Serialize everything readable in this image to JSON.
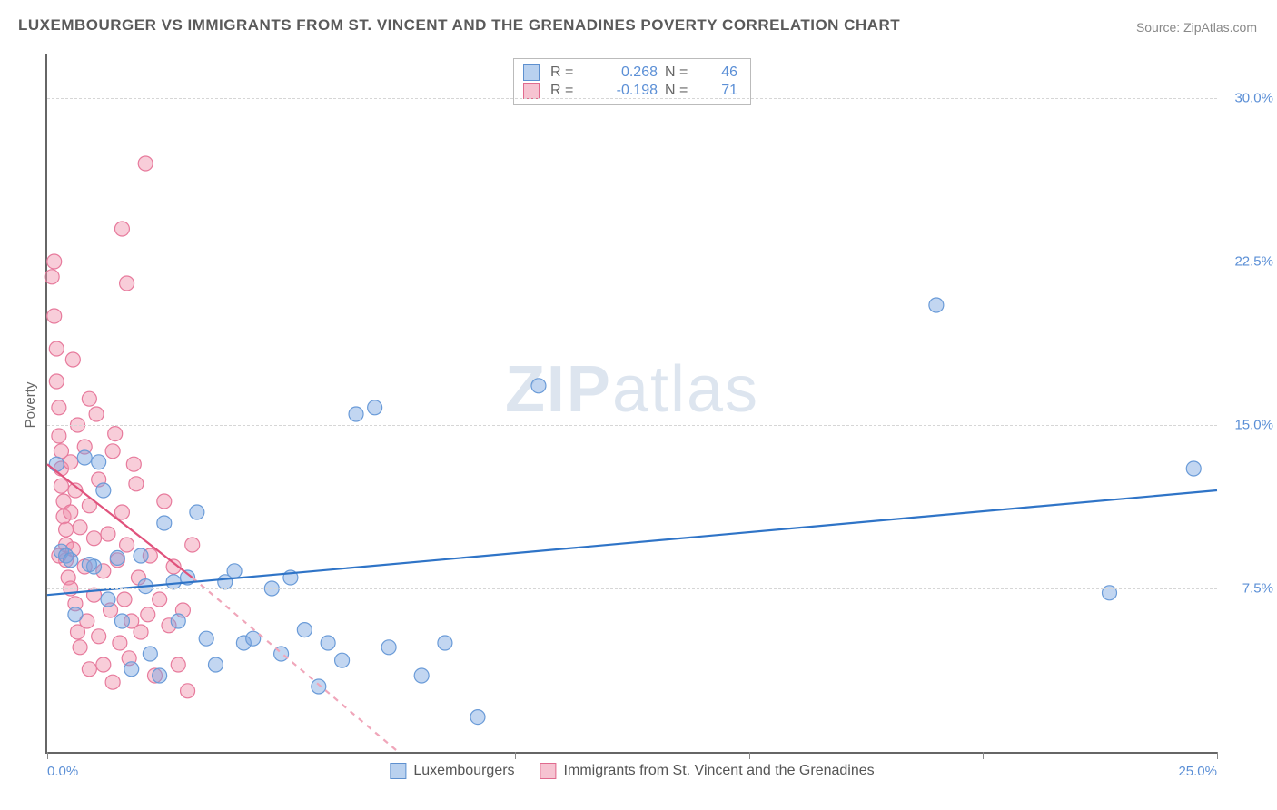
{
  "title": "LUXEMBOURGER VS IMMIGRANTS FROM ST. VINCENT AND THE GRENADINES POVERTY CORRELATION CHART",
  "source": "Source: ZipAtlas.com",
  "ylabel": "Poverty",
  "watermark": {
    "z": "ZIP",
    "rest": "atlas"
  },
  "chart": {
    "type": "scatter",
    "background_color": "#ffffff",
    "grid_color": "#d6d6d6",
    "axis_color": "#666666",
    "xlim": [
      0,
      25
    ],
    "ylim": [
      0,
      32
    ],
    "x_ticks": [
      0,
      5,
      10,
      15,
      20,
      25
    ],
    "x_tick_labels_shown": {
      "0": "0.0%",
      "25": "25.0%"
    },
    "y_gridlines": [
      7.5,
      15.0,
      22.5,
      30.0
    ],
    "y_tick_labels": [
      "7.5%",
      "15.0%",
      "22.5%",
      "30.0%"
    ],
    "marker_radius": 8,
    "marker_opacity": 0.55,
    "line_width": 2.2,
    "series": [
      {
        "id": "lux",
        "label": "Luxembourgers",
        "color_fill": "rgba(120,165,225,0.45)",
        "color_stroke": "#6a9bd8",
        "swatch_fill": "#b9d1ef",
        "swatch_border": "#5e90cf",
        "R": "0.268",
        "N": "46",
        "trend": {
          "x1": 0,
          "y1": 7.2,
          "x2": 25,
          "y2": 12.0,
          "dash": "none",
          "color": "#2f74c7"
        },
        "points": [
          [
            0.2,
            13.2
          ],
          [
            0.3,
            9.2
          ],
          [
            0.4,
            9.0
          ],
          [
            0.5,
            8.8
          ],
          [
            0.6,
            6.3
          ],
          [
            0.8,
            13.5
          ],
          [
            1.0,
            8.5
          ],
          [
            1.2,
            12.0
          ],
          [
            1.3,
            7.0
          ],
          [
            1.5,
            8.9
          ],
          [
            1.6,
            6.0
          ],
          [
            1.8,
            3.8
          ],
          [
            2.0,
            9.0
          ],
          [
            2.1,
            7.6
          ],
          [
            2.2,
            4.5
          ],
          [
            2.4,
            3.5
          ],
          [
            2.5,
            10.5
          ],
          [
            2.7,
            7.8
          ],
          [
            2.8,
            6.0
          ],
          [
            3.0,
            8.0
          ],
          [
            3.2,
            11.0
          ],
          [
            3.4,
            5.2
          ],
          [
            3.6,
            4.0
          ],
          [
            3.8,
            7.8
          ],
          [
            4.0,
            8.3
          ],
          [
            4.2,
            5.0
          ],
          [
            4.4,
            5.2
          ],
          [
            4.8,
            7.5
          ],
          [
            5.0,
            4.5
          ],
          [
            5.2,
            8.0
          ],
          [
            5.5,
            5.6
          ],
          [
            5.8,
            3.0
          ],
          [
            6.0,
            5.0
          ],
          [
            6.3,
            4.2
          ],
          [
            6.6,
            15.5
          ],
          [
            7.0,
            15.8
          ],
          [
            7.3,
            4.8
          ],
          [
            8.0,
            3.5
          ],
          [
            8.5,
            5.0
          ],
          [
            9.2,
            1.6
          ],
          [
            10.5,
            16.8
          ],
          [
            19.0,
            20.5
          ],
          [
            22.7,
            7.3
          ],
          [
            24.5,
            13.0
          ],
          [
            1.1,
            13.3
          ],
          [
            0.9,
            8.6
          ]
        ]
      },
      {
        "id": "svg",
        "label": "Immigrants from St. Vincent and the Grenadines",
        "color_fill": "rgba(240,145,170,0.45)",
        "color_stroke": "#e77a9c",
        "swatch_fill": "#f6c3d1",
        "swatch_border": "#e06a8e",
        "R": "-0.198",
        "N": "71",
        "trend_solid": {
          "x1": 0,
          "y1": 13.2,
          "x2": 3.1,
          "y2": 8.0,
          "dash": "none",
          "color": "#e0527c"
        },
        "trend_dash": {
          "x1": 3.1,
          "y1": 8.0,
          "x2": 7.5,
          "y2": 0.0,
          "dash": "6,6",
          "color": "#f0a6ba"
        },
        "points": [
          [
            0.1,
            21.8
          ],
          [
            0.15,
            20.0
          ],
          [
            0.2,
            18.5
          ],
          [
            0.2,
            17.0
          ],
          [
            0.25,
            15.8
          ],
          [
            0.25,
            14.5
          ],
          [
            0.3,
            13.8
          ],
          [
            0.3,
            13.0
          ],
          [
            0.3,
            12.2
          ],
          [
            0.35,
            11.5
          ],
          [
            0.35,
            10.8
          ],
          [
            0.4,
            10.2
          ],
          [
            0.4,
            9.5
          ],
          [
            0.4,
            8.8
          ],
          [
            0.45,
            8.0
          ],
          [
            0.5,
            13.3
          ],
          [
            0.5,
            11.0
          ],
          [
            0.5,
            7.5
          ],
          [
            0.55,
            9.3
          ],
          [
            0.6,
            12.0
          ],
          [
            0.6,
            6.8
          ],
          [
            0.65,
            5.5
          ],
          [
            0.7,
            10.3
          ],
          [
            0.7,
            4.8
          ],
          [
            0.8,
            14.0
          ],
          [
            0.8,
            8.5
          ],
          [
            0.85,
            6.0
          ],
          [
            0.9,
            11.3
          ],
          [
            0.9,
            3.8
          ],
          [
            1.0,
            9.8
          ],
          [
            1.0,
            7.2
          ],
          [
            1.1,
            12.5
          ],
          [
            1.1,
            5.3
          ],
          [
            1.2,
            8.3
          ],
          [
            1.2,
            4.0
          ],
          [
            1.3,
            10.0
          ],
          [
            1.35,
            6.5
          ],
          [
            1.4,
            13.8
          ],
          [
            1.4,
            3.2
          ],
          [
            1.5,
            8.8
          ],
          [
            1.55,
            5.0
          ],
          [
            1.6,
            11.0
          ],
          [
            1.65,
            7.0
          ],
          [
            1.7,
            9.5
          ],
          [
            1.75,
            4.3
          ],
          [
            1.8,
            6.0
          ],
          [
            1.9,
            12.3
          ],
          [
            1.95,
            8.0
          ],
          [
            2.0,
            5.5
          ],
          [
            2.1,
            27.0
          ],
          [
            1.6,
            24.0
          ],
          [
            1.7,
            21.5
          ],
          [
            2.2,
            9.0
          ],
          [
            2.3,
            3.5
          ],
          [
            2.4,
            7.0
          ],
          [
            2.5,
            11.5
          ],
          [
            2.6,
            5.8
          ],
          [
            2.7,
            8.5
          ],
          [
            2.8,
            4.0
          ],
          [
            2.9,
            6.5
          ],
          [
            3.0,
            2.8
          ],
          [
            3.1,
            9.5
          ],
          [
            0.15,
            22.5
          ],
          [
            0.55,
            18.0
          ],
          [
            1.05,
            15.5
          ],
          [
            1.45,
            14.6
          ],
          [
            0.9,
            16.2
          ],
          [
            0.65,
            15.0
          ],
          [
            1.85,
            13.2
          ],
          [
            2.15,
            6.3
          ],
          [
            0.25,
            9.0
          ]
        ]
      }
    ]
  },
  "legend_top": {
    "rows": [
      {
        "swatch_series": "lux",
        "R_label": "R =",
        "N_label": "N ="
      },
      {
        "swatch_series": "svg",
        "R_label": "R =",
        "N_label": "N ="
      }
    ]
  }
}
